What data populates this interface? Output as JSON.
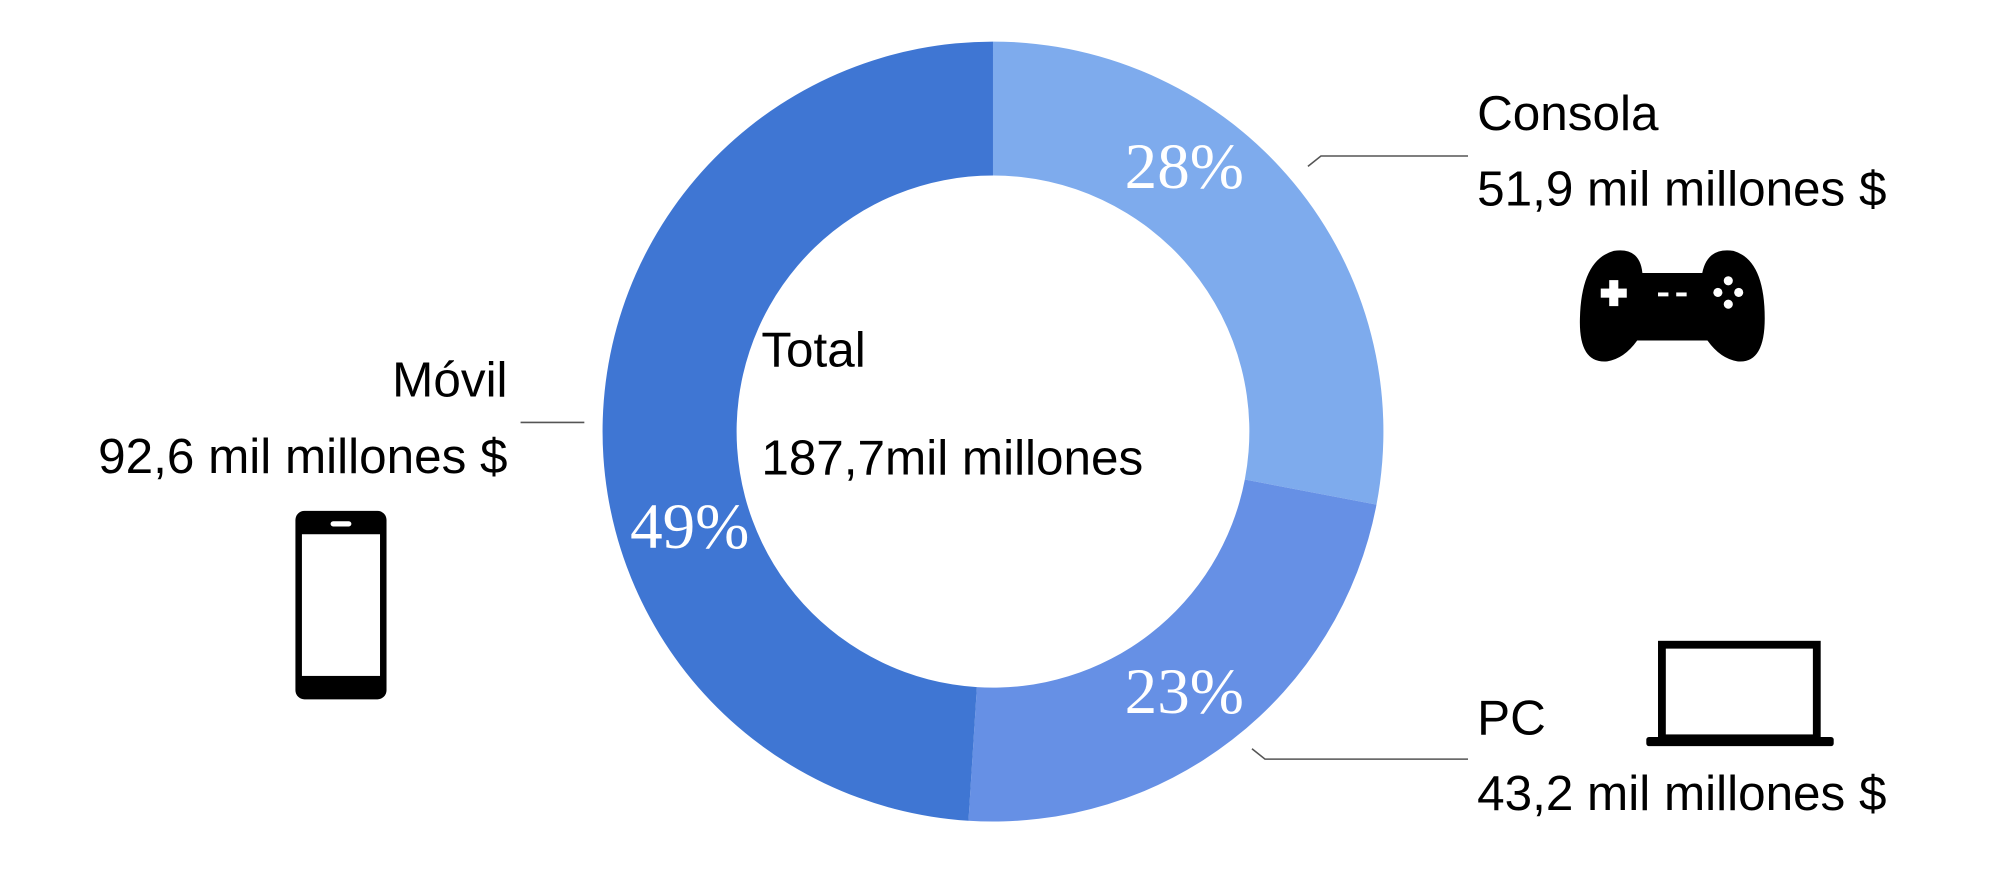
{
  "chart_data": {
    "type": "donut",
    "center_label": "Total",
    "center_value": "187,7mil millones",
    "categories": [
      "Consola",
      "PC",
      "Móvil"
    ],
    "values": [
      28,
      23,
      49
    ],
    "value_labels": [
      "28%",
      "23%",
      "49%"
    ],
    "amount_labels": [
      "51,9 mil millones $",
      "43,2 mil millones $",
      "92,6 mil millones $"
    ],
    "colors": [
      "#7eabed",
      "#6690e5",
      "#3f76d3"
    ]
  }
}
